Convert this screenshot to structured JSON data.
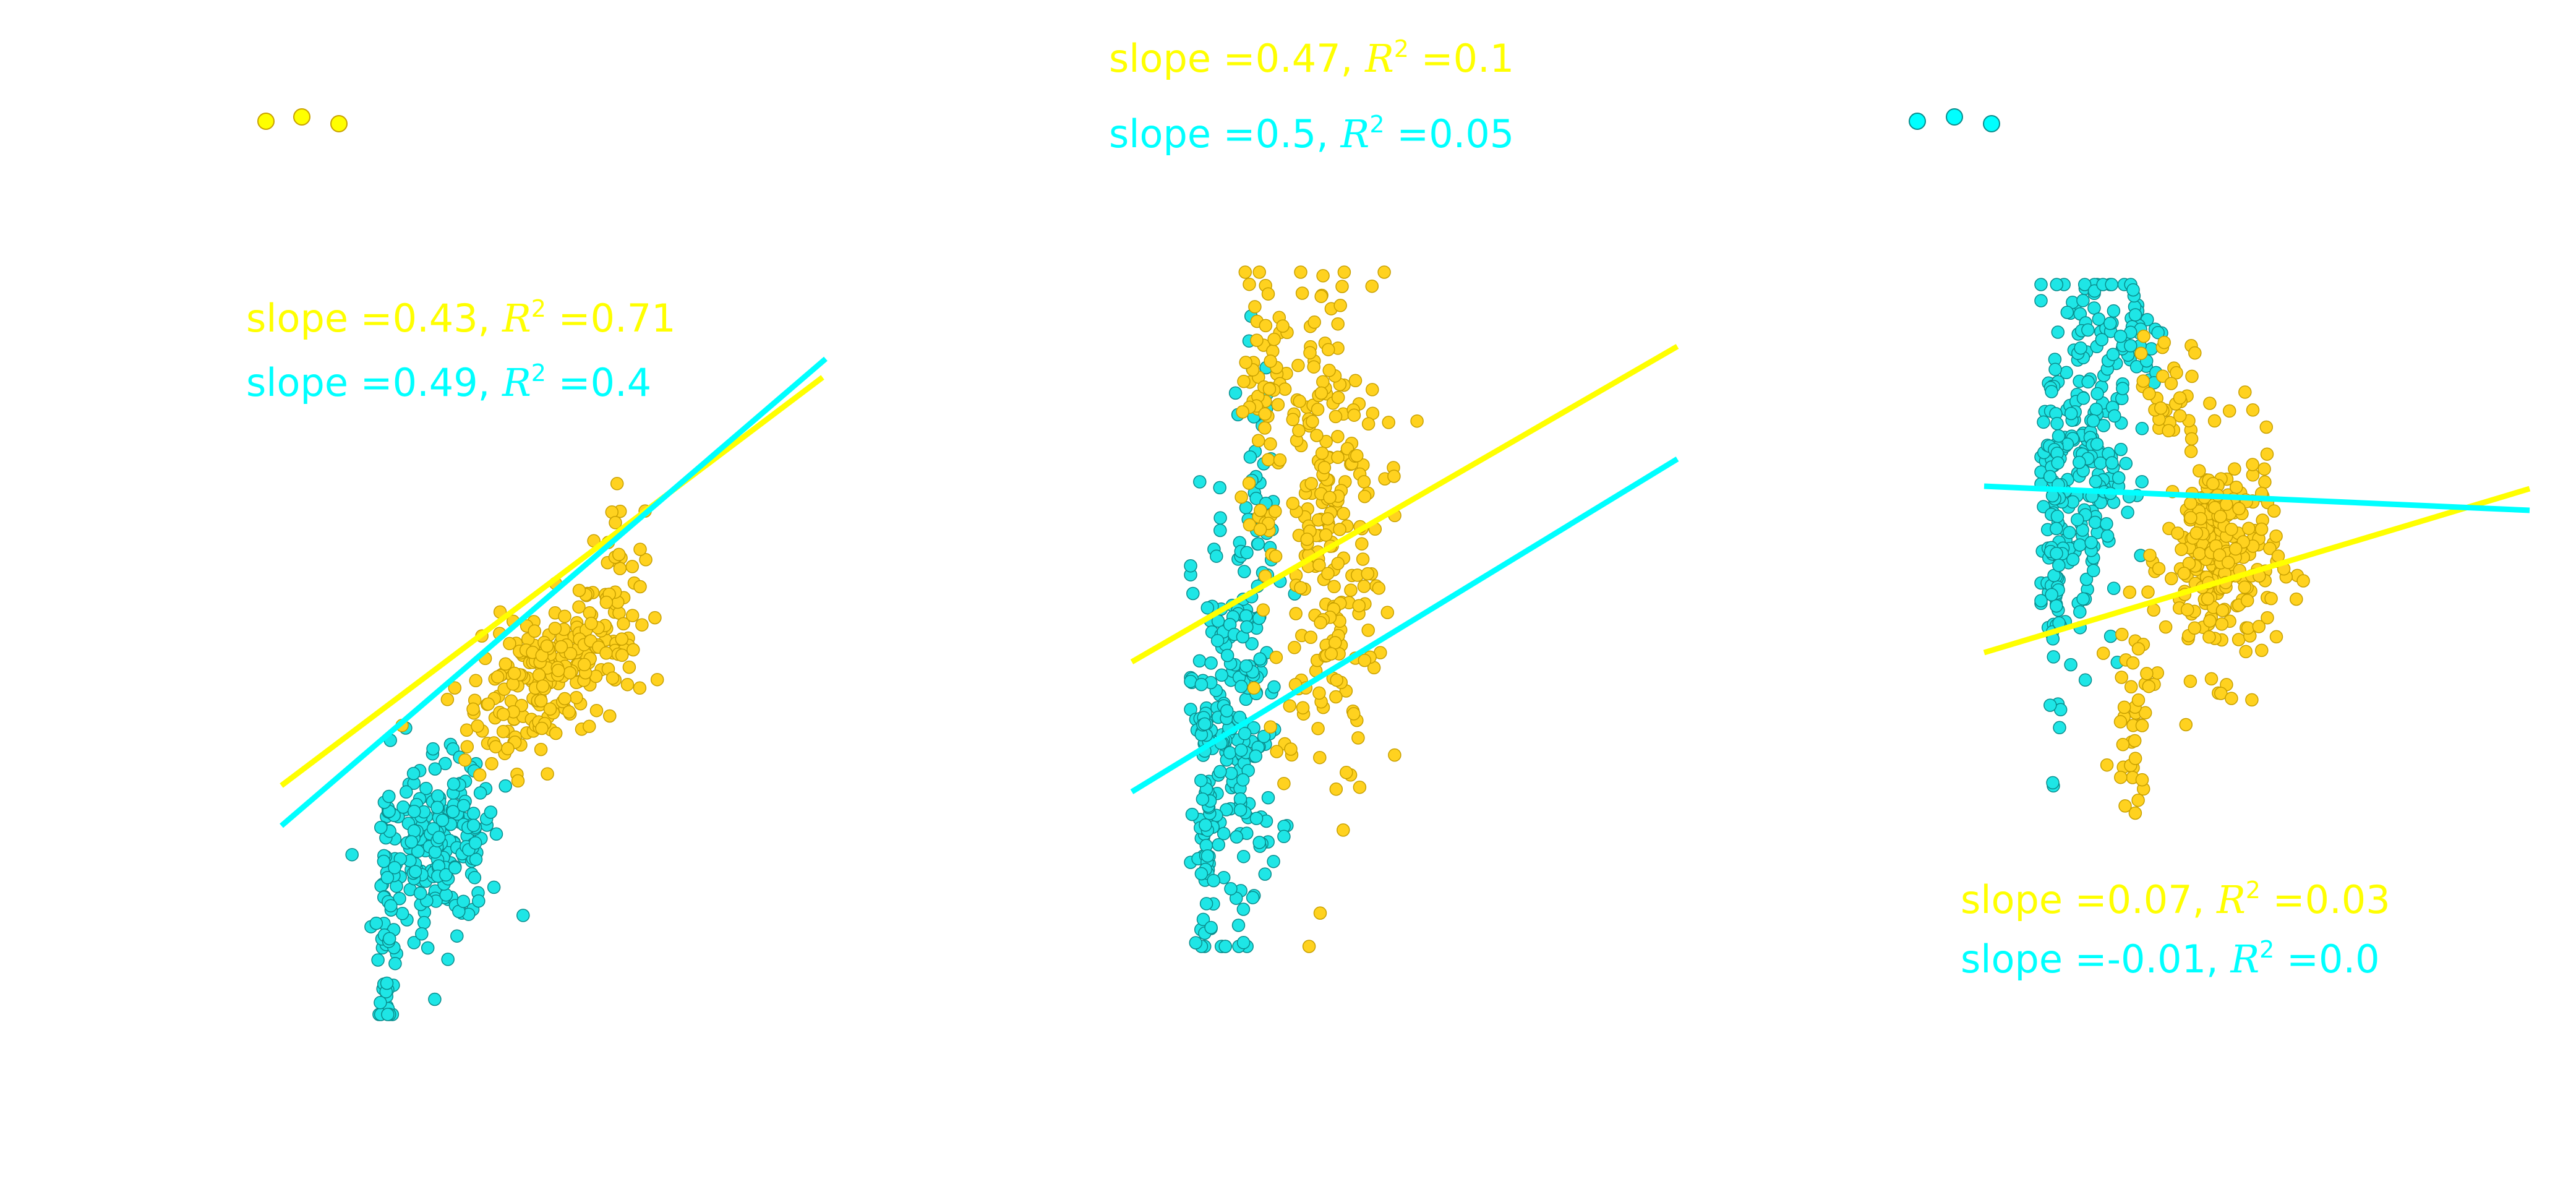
{
  "colors": {
    "series_a": "#ffff00",
    "series_a_points": "#ffd21f",
    "series_b": "#00ffff",
    "series_b_points": "#1ee6e6",
    "point_edge": "#c8a000",
    "point_edge_b": "#0a8c8c",
    "background": "#ffffff"
  },
  "chart_data": [
    {
      "type": "scatter",
      "title": "",
      "xlabel": "",
      "ylabel": "",
      "grid": false,
      "annotations": [
        {
          "series": "a",
          "prefix": "slope =",
          "slope": "0.43",
          "r2_label": "R",
          "r2_sup": "2",
          "r2_value": "0.71"
        },
        {
          "series": "b",
          "prefix": "slope =",
          "slope": "0.49",
          "r2_label": "R",
          "r2_sup": "2",
          "r2_value": "0.4"
        }
      ],
      "series": [
        {
          "key": "a",
          "fit": {
            "slope": 0.43,
            "r2": 0.71
          },
          "clusters": [
            {
              "cx": 0.62,
              "cy": 0.57,
              "sx": 0.12,
              "sy": 0.06,
              "n": 200,
              "rot": 0.35
            },
            {
              "cx": 0.85,
              "cy": 0.7,
              "sx": 0.04,
              "sy": 0.09,
              "n": 60,
              "rot": 0
            }
          ]
        },
        {
          "key": "b",
          "fit": {
            "slope": 0.49,
            "r2": 0.4
          },
          "clusters": [
            {
              "cx": 0.32,
              "cy": 0.28,
              "sx": 0.09,
              "sy": 0.07,
              "n": 210,
              "rot": 0.3
            },
            {
              "cx": 0.16,
              "cy": 0.18,
              "sx": 0.015,
              "sy": 0.12,
              "n": 50,
              "rot": 0
            }
          ]
        }
      ]
    },
    {
      "type": "scatter",
      "title": "",
      "xlabel": "",
      "ylabel": "",
      "grid": false,
      "annotations": [
        {
          "series": "a",
          "prefix": "slope =",
          "slope": "0.47",
          "r2_label": "R",
          "r2_sup": "2",
          "r2_value": "0.1"
        },
        {
          "series": "b",
          "prefix": "slope =",
          "slope": "0.5",
          "r2_label": "R",
          "r2_sup": "2",
          "r2_value": "0.05"
        }
      ],
      "series": [
        {
          "key": "a",
          "fit": {
            "slope": 0.47,
            "r2": 0.1
          },
          "clusters": [
            {
              "cx": 0.42,
              "cy": 0.62,
              "sx": 0.09,
              "sy": 0.2,
              "n": 250,
              "rot": 0
            },
            {
              "cx": 0.22,
              "cy": 0.8,
              "sx": 0.03,
              "sy": 0.12,
              "n": 50,
              "rot": 0
            }
          ]
        },
        {
          "key": "b",
          "fit": {
            "slope": 0.5,
            "r2": 0.05
          },
          "clusters": [
            {
              "cx": 0.14,
              "cy": 0.33,
              "sx": 0.07,
              "sy": 0.16,
              "n": 200,
              "rot": 0
            },
            {
              "cx": 0.05,
              "cy": 0.18,
              "sx": 0.012,
              "sy": 0.1,
              "n": 60,
              "rot": 0
            },
            {
              "cx": 0.2,
              "cy": 0.67,
              "sx": 0.03,
              "sy": 0.12,
              "n": 40,
              "rot": 0
            }
          ]
        }
      ]
    },
    {
      "type": "scatter",
      "title": "",
      "xlabel": "",
      "ylabel": "",
      "grid": false,
      "annotations": [
        {
          "series": "a",
          "prefix": "slope =",
          "slope": "0.07",
          "r2_label": "R",
          "r2_sup": "2",
          "r2_value": "0.03"
        },
        {
          "series": "b",
          "prefix": "slope =",
          "slope": "-0.01",
          "r2_label": "R",
          "r2_sup": "2",
          "r2_value": "0.0"
        }
      ],
      "series": [
        {
          "key": "a",
          "fit": {
            "slope": 0.07,
            "r2": 0.03
          },
          "clusters": [
            {
              "cx": 0.52,
              "cy": 0.52,
              "sx": 0.08,
              "sy": 0.1,
              "n": 260,
              "rot": 0
            },
            {
              "cx": 0.27,
              "cy": 0.25,
              "sx": 0.03,
              "sy": 0.08,
              "n": 40,
              "rot": 0
            },
            {
              "cx": 0.36,
              "cy": 0.82,
              "sx": 0.04,
              "sy": 0.05,
              "n": 30,
              "rot": 0
            }
          ]
        },
        {
          "key": "b",
          "fit": {
            "slope": -0.01,
            "r2": 0.0
          },
          "clusters": [
            {
              "cx": 0.12,
              "cy": 0.7,
              "sx": 0.06,
              "sy": 0.17,
              "n": 200,
              "rot": 0
            },
            {
              "cx": 0.04,
              "cy": 0.6,
              "sx": 0.012,
              "sy": 0.2,
              "n": 80,
              "rot": 0
            },
            {
              "cx": 0.28,
              "cy": 0.9,
              "sx": 0.04,
              "sy": 0.06,
              "n": 40,
              "rot": 0
            }
          ]
        }
      ]
    }
  ]
}
